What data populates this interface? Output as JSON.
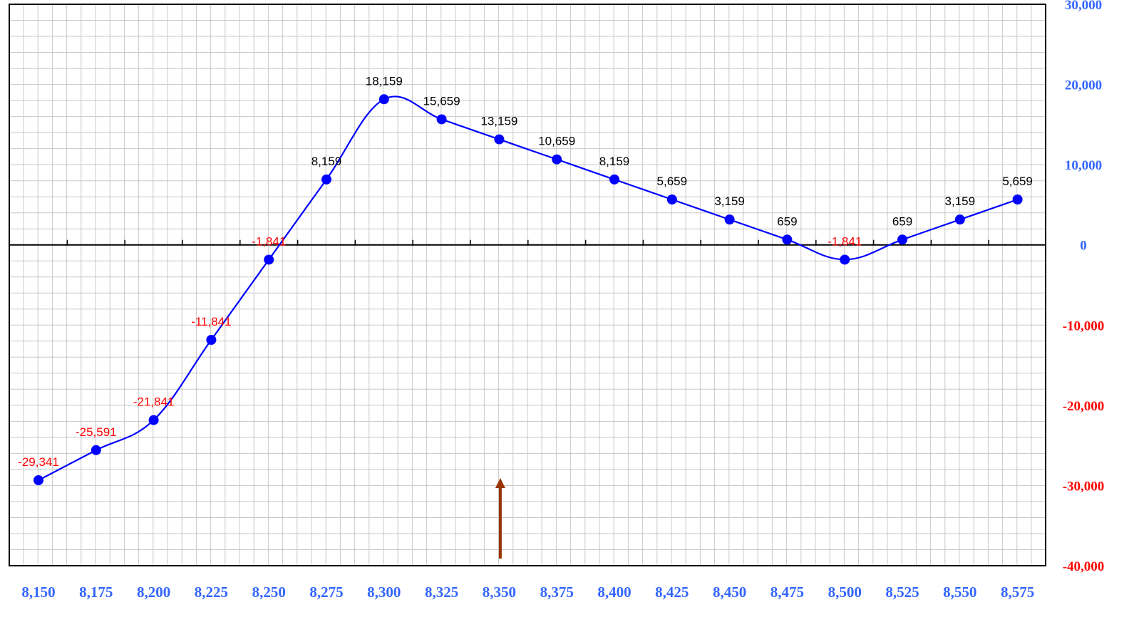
{
  "chart_data": {
    "type": "line",
    "x": [
      8150,
      8175,
      8200,
      8225,
      8250,
      8275,
      8300,
      8325,
      8350,
      8375,
      8400,
      8425,
      8450,
      8475,
      8500,
      8525,
      8550,
      8575
    ],
    "x_tick_labels": [
      "8,150",
      "8,175",
      "8,200",
      "8,225",
      "8,250",
      "8,275",
      "8,300",
      "8,325",
      "8,350",
      "8,375",
      "8,400",
      "8,425",
      "8,450",
      "8,475",
      "8,500",
      "8,525",
      "8,550",
      "8,575"
    ],
    "series": [
      {
        "values": [
          -29341,
          -25591,
          -21841,
          -11841,
          -1841,
          8159,
          18159,
          15659,
          13159,
          10659,
          8159,
          5659,
          3159,
          659,
          -1841,
          659,
          3159,
          5659
        ],
        "data_labels": [
          "-29,341",
          "-25,591",
          "-21,841",
          "-11,841",
          "-1,841",
          "8,159",
          "18,159",
          "15,659",
          "13,159",
          "10,659",
          "8,159",
          "5,659",
          "3,159",
          "659",
          "-1,841",
          "659",
          "3,159",
          "5,659"
        ],
        "color": "#0000ff"
      }
    ],
    "ylim": [
      -40000,
      30000
    ],
    "y_ticks": [
      30000,
      20000,
      10000,
      0,
      -10000,
      -20000,
      -30000,
      -40000
    ],
    "y_tick_labels": [
      "30,000",
      "20,000",
      "10,000",
      "0",
      "-10,000",
      "-20,000",
      "-30,000",
      "-40,000"
    ],
    "y_axis_position": "right",
    "grid": true,
    "marker_arrow_x": 8350,
    "colors": {
      "positive_label": "#000000",
      "negative_label": "#ff0000",
      "positive_tick": "#3366ff",
      "negative_tick": "#ff0000",
      "x_tick": "#3366ff",
      "arrow": "#993300"
    }
  }
}
